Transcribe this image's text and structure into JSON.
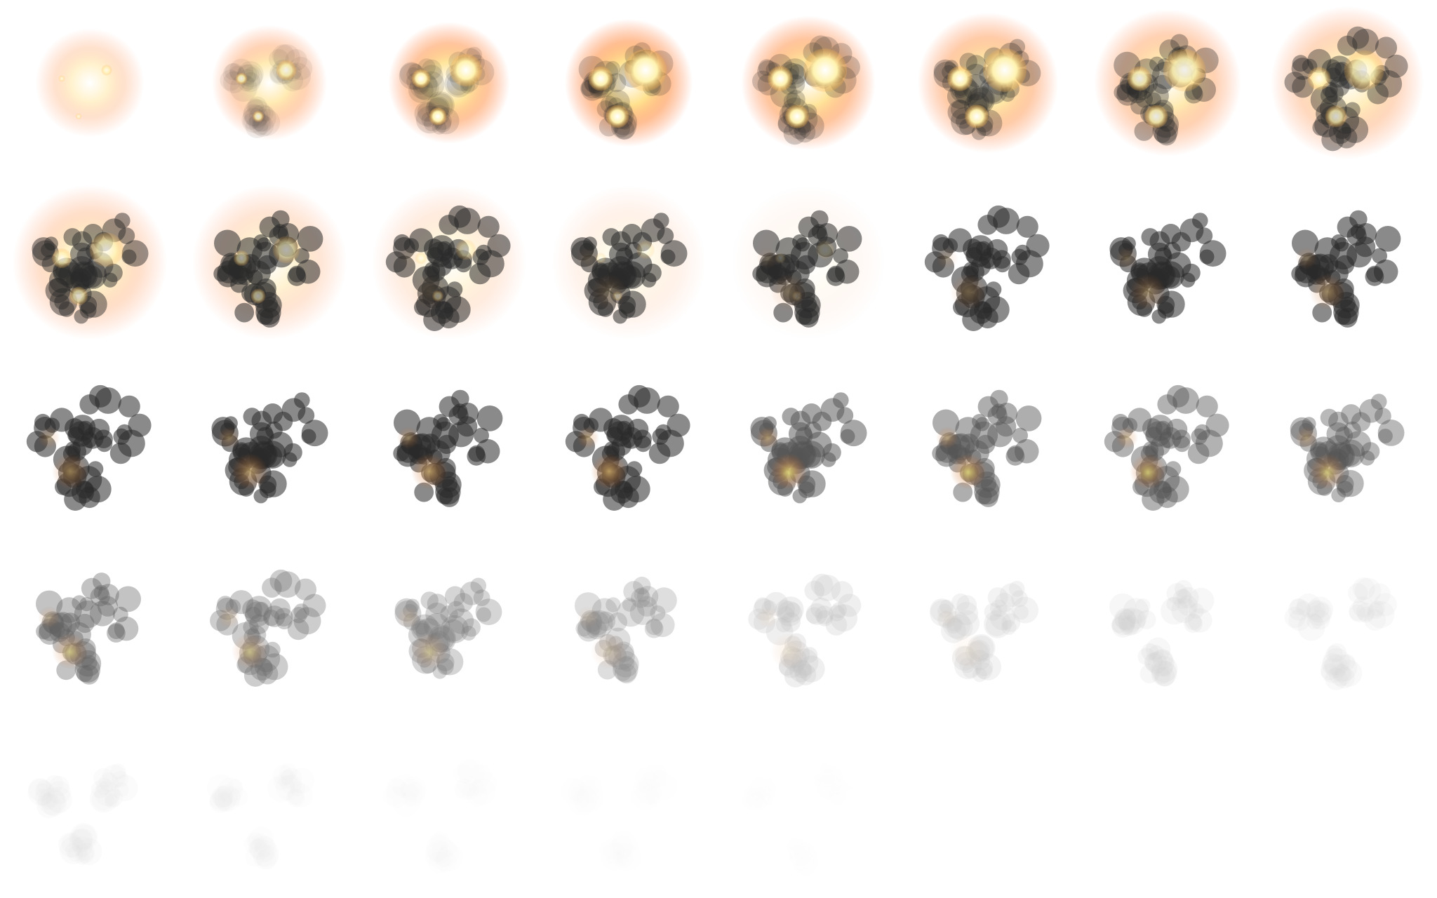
{
  "sprite_sheet": {
    "subject": "explosion-animation",
    "columns": 8,
    "rows": 5,
    "frame_count": 37,
    "background_color": "#ffffff",
    "palette": {
      "core": "#fffde0",
      "flame": "#ffb040",
      "glow": "#ff7a2a",
      "ember": "#e06a1e",
      "smoke_dark": "#2a2a2a",
      "smoke_mid": "#555555",
      "smoke_light": "#9a9a9a",
      "green_tint": "#b5c25a"
    },
    "phase_by_frame": [
      "ignition",
      "ignition",
      "fireball",
      "fireball",
      "fireball",
      "fireball",
      "fireball",
      "fireball",
      "burning",
      "burning",
      "burning",
      "smoke",
      "smoke",
      "smoke",
      "smoke",
      "smoke",
      "smoke",
      "smoke",
      "smoke",
      "smoke",
      "smoke",
      "smoke",
      "smoke",
      "smoke",
      "dissipating",
      "dissipating",
      "dissipating",
      "dissipating",
      "dissipating",
      "dissipating",
      "dissipating",
      "dissipating",
      "fading",
      "fading",
      "fading",
      "fading",
      "fading"
    ]
  }
}
